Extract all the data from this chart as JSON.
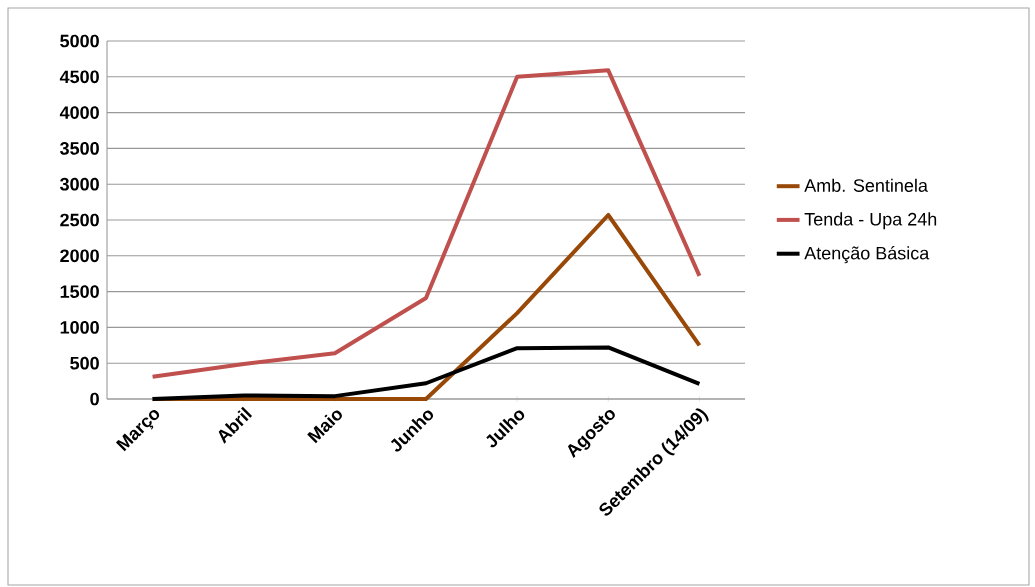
{
  "chart_data": {
    "type": "line",
    "categories": [
      "Março",
      "Abril",
      "Maio",
      "Junho",
      "Julho",
      "Agosto",
      "Setembro (14/09)"
    ],
    "series": [
      {
        "name": "Amb. Sentinela",
        "color": "#984807",
        "values": [
          0,
          0,
          0,
          0,
          1200,
          2570,
          750
        ]
      },
      {
        "name": "Tenda - Upa 24h",
        "color": "#c0504d",
        "values": [
          310,
          490,
          640,
          1410,
          4500,
          4590,
          1720
        ]
      },
      {
        "name": "Atenção Básica",
        "color": "#000000",
        "values": [
          0,
          50,
          40,
          220,
          710,
          720,
          210
        ]
      }
    ],
    "ylim": [
      0,
      5000
    ],
    "yticks": [
      0,
      500,
      1000,
      1500,
      2000,
      2500,
      3000,
      3500,
      4000,
      4500,
      5000
    ],
    "grid": "y",
    "legend": "right",
    "marker": "none",
    "line_style": "solid"
  }
}
